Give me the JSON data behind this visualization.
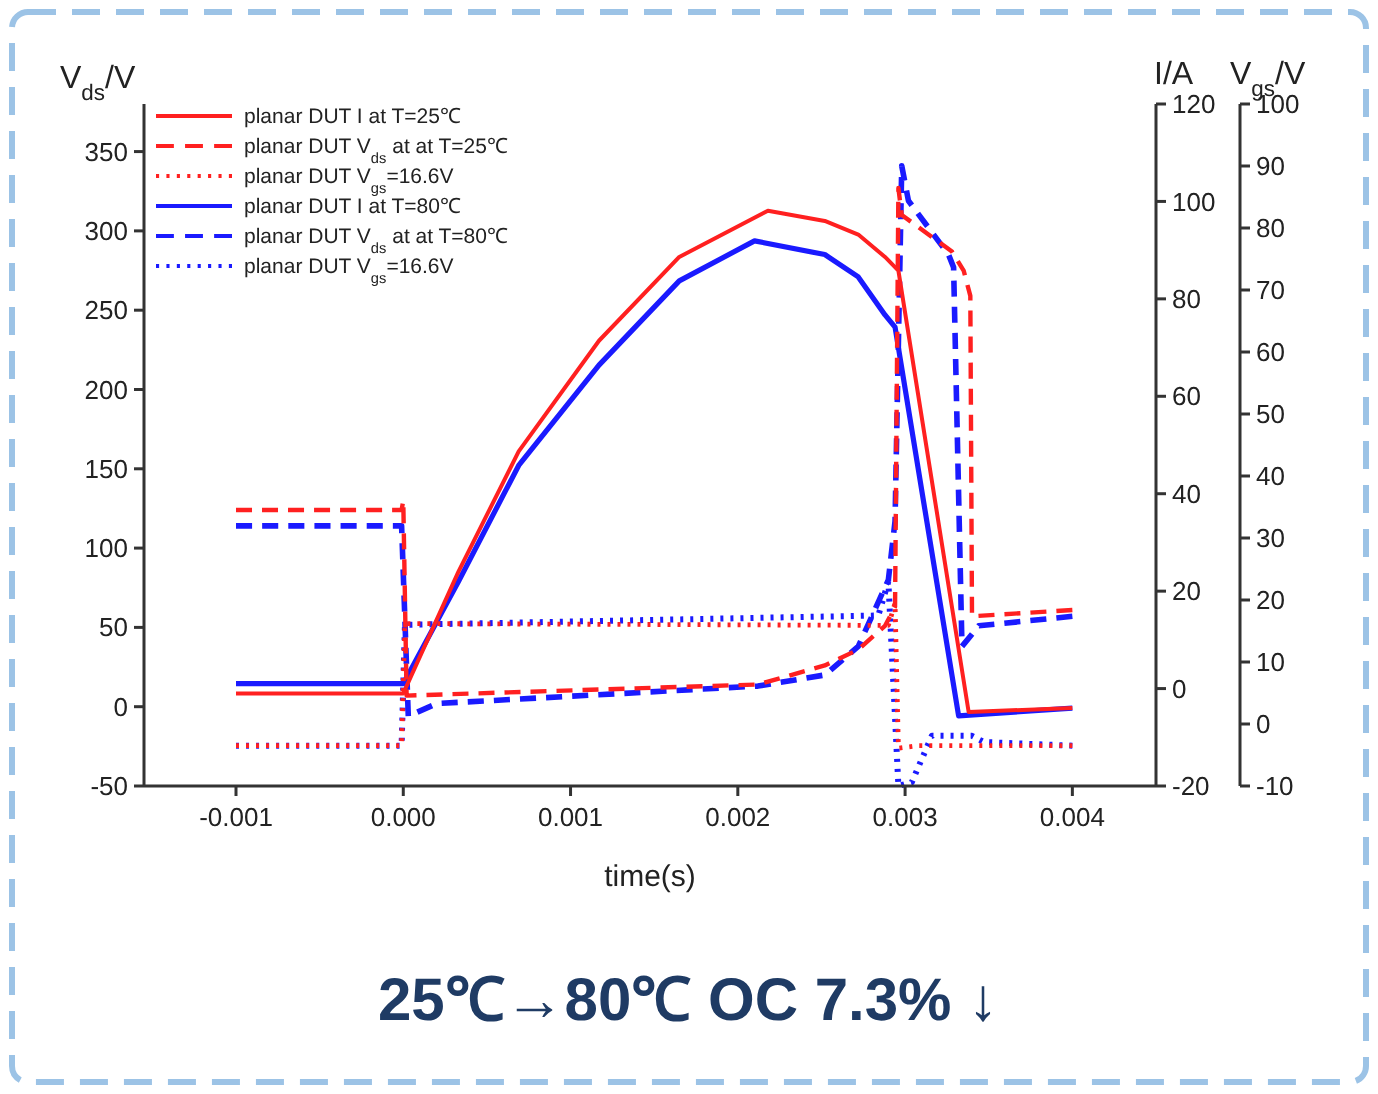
{
  "chart_data": {
    "type": "line",
    "xlabel": "time(s)",
    "ylabel": "V$_{ds}$/V",
    "y2label": "I/A",
    "y3label": "V$_{gs}$/V",
    "xlim": [
      -0.00155,
      0.0045
    ],
    "xticks": [
      -0.001,
      {
        "value": 0,
        "label": "0.000"
      },
      0.001,
      0.002,
      0.003,
      0.004
    ],
    "ylim": [
      -50,
      380
    ],
    "yticks": [
      -50,
      0,
      50,
      100,
      150,
      200,
      250,
      300,
      350
    ],
    "y2lim": [
      -20,
      120
    ],
    "y2ticks": [
      -20,
      0,
      20,
      40,
      60,
      80,
      100,
      120
    ],
    "y3lim": [
      -10,
      100
    ],
    "y3ticks": [
      -10,
      0,
      10,
      20,
      30,
      40,
      50,
      60,
      70,
      80,
      90,
      100
    ],
    "grid": false,
    "legend": "top left",
    "series": [
      {
        "name": "planar DUT I at T=25℃",
        "color": "#ff2020",
        "axis": "y2",
        "line_style": "solid",
        "x": [
          -0.001,
          0,
          0.00033,
          0.00069,
          0.00117,
          0.00165,
          0.00218,
          0.00252,
          0.00272,
          0.00288,
          0.00296,
          0.00338,
          0.004
        ],
        "values": [
          -1,
          -1,
          24,
          48.7,
          71.4,
          88.6,
          98.1,
          96,
          93.2,
          88.6,
          85.8,
          -4.8,
          -4
        ]
      },
      {
        "name": "planar DUT V$_{ds}$ at at T=25℃",
        "color": "#ff2020",
        "line_style": "dashed",
        "x": [
          -0.001,
          -1e-05,
          0,
          2e-05,
          0.00212,
          0.00252,
          0.00272,
          0.00288,
          0.00294,
          0.00296,
          0.00298,
          0.00328,
          0.00335,
          0.00339,
          0.0034,
          0.004
        ],
        "values": [
          124,
          124,
          130,
          7,
          14,
          26,
          36,
          51,
          63,
          327,
          310,
          287,
          275,
          259,
          57,
          61
        ]
      },
      {
        "name": "planar DUT V$_{gs}$=16.6V",
        "color": "#ff2020",
        "axis": "y3",
        "line_style": "dotted",
        "x": [
          -0.001,
          -1e-05,
          1e-05,
          0.0029,
          0.00294,
          0.00296,
          0.00308,
          0.004
        ],
        "values": [
          -3.5,
          -3.5,
          16.2,
          15.9,
          19.5,
          -3.9,
          -3.5,
          -3.5
        ]
      },
      {
        "name": "planar DUT I at T=80℃",
        "color": "#1a1aff",
        "axis": "y2",
        "line_style": "solid",
        "x": [
          -0.001,
          0,
          0.00033,
          0.00069,
          0.00117,
          0.00165,
          0.0021,
          0.00252,
          0.00272,
          0.00288,
          0.00294,
          0.00332,
          0.004
        ],
        "values": [
          1,
          1,
          22,
          45.8,
          66.4,
          83.7,
          91.9,
          89.1,
          84.5,
          76.7,
          74.2,
          -5.6,
          -4
        ]
      },
      {
        "name": "planar DUT V$_{ds}$ at at T=80℃",
        "color": "#1a1aff",
        "line_style": "dashed",
        "x": [
          -0.001,
          -1e-05,
          3e-05,
          0.0002,
          0.00212,
          0.00252,
          0.00272,
          0.0029,
          0.00294,
          0.00298,
          0.00302,
          0.00326,
          0.00329,
          0.00334,
          0.00344,
          0.004
        ],
        "values": [
          114,
          114,
          -6,
          2,
          13,
          20,
          38,
          80,
          117,
          341,
          319,
          285,
          277,
          38,
          51,
          57
        ]
      },
      {
        "name": "planar DUT V$_{gs}$=16.6V",
        "color": "#1a1aff",
        "axis": "y3",
        "line_style": "dotted",
        "x": [
          -0.001,
          -1e-05,
          1e-05,
          0.00284,
          0.0029,
          0.00296,
          0.00304,
          0.00316,
          0.0034,
          0.00347,
          0.004
        ],
        "values": [
          -3.5,
          -3.5,
          16,
          17.5,
          23,
          -10,
          -9.4,
          -1.9,
          -1.9,
          -2.9,
          -3.5
        ]
      }
    ],
    "annotations": [
      "25℃→80℃    OC 7.3% ↓"
    ]
  }
}
